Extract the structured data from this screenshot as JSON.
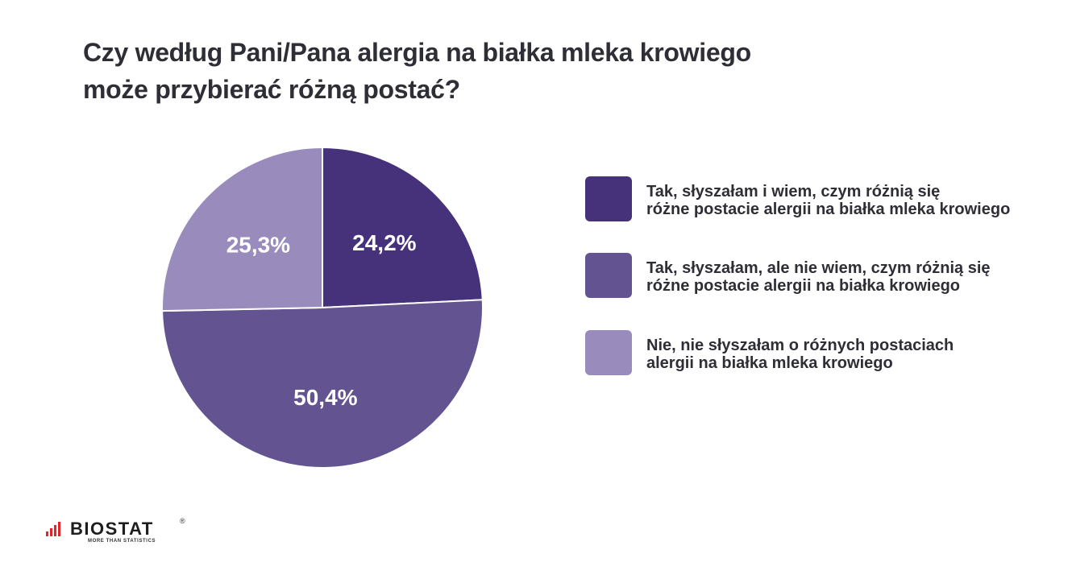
{
  "chart_data": {
    "type": "pie",
    "title_lines": [
      "Czy według Pani/Pana alergia na białka mleka krowiego",
      "może przybierać różną postać?"
    ],
    "slices": [
      {
        "label": "Tak, słyszałam i wiem, czym różnią się różne postacie alergii na białka mleka krowiego",
        "label_lines": [
          "Tak, słyszałam i wiem, czym różnią się",
          "różne postacie alergii na białka mleka krowiego"
        ],
        "value": 24.2,
        "value_label": "24,2%",
        "color": "#46327a"
      },
      {
        "label": "Tak, słyszałam, ale nie wiem, czym różnią się różne postacie alergii na białka krowiego",
        "label_lines": [
          "Tak, słyszałam, ale nie wiem, czym różnią się",
          "różne postacie alergii na białka krowiego"
        ],
        "value": 50.4,
        "value_label": "50,4%",
        "color": "#635391"
      },
      {
        "label": "Nie, nie słyszałam o różnych postaciach alergii na białka mleka krowiego",
        "label_lines": [
          "Nie, nie słyszałam o różnych postaciach",
          "alergii na białka mleka krowiego"
        ],
        "value": 25.3,
        "value_label": "25,3%",
        "color": "#998cbd"
      }
    ],
    "start_angle_deg": 0,
    "direction": "clockwise",
    "legend_position": "right"
  },
  "logo": {
    "name": "BIOSTAT",
    "tagline": "MORE THAN STATISTICS",
    "reg_mark": "®",
    "accent_color": "#e0262b"
  }
}
